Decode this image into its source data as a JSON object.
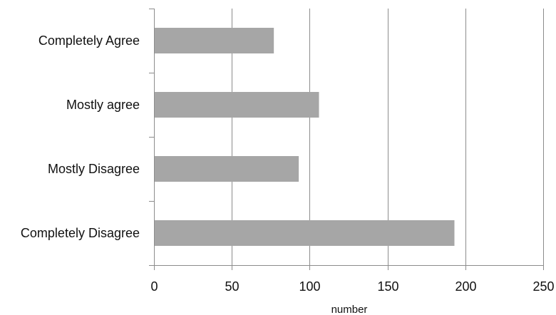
{
  "chart_data": {
    "type": "bar",
    "orientation": "horizontal",
    "categories": [
      "Completely Agree",
      "Mostly agree",
      "Mostly Disagree",
      "Completely Disagree"
    ],
    "values": [
      77,
      106,
      93,
      193
    ],
    "xlabel": "number",
    "ylabel": "",
    "xlim": [
      0,
      250
    ],
    "xticks": [
      "0",
      "50",
      "100",
      "150",
      "200",
      "250"
    ],
    "grid": "vertical",
    "legend": "none",
    "colors": {
      "bar": "#a6a6a6",
      "grid": "#8c8c8c",
      "axis": "#8c8c8c"
    }
  }
}
